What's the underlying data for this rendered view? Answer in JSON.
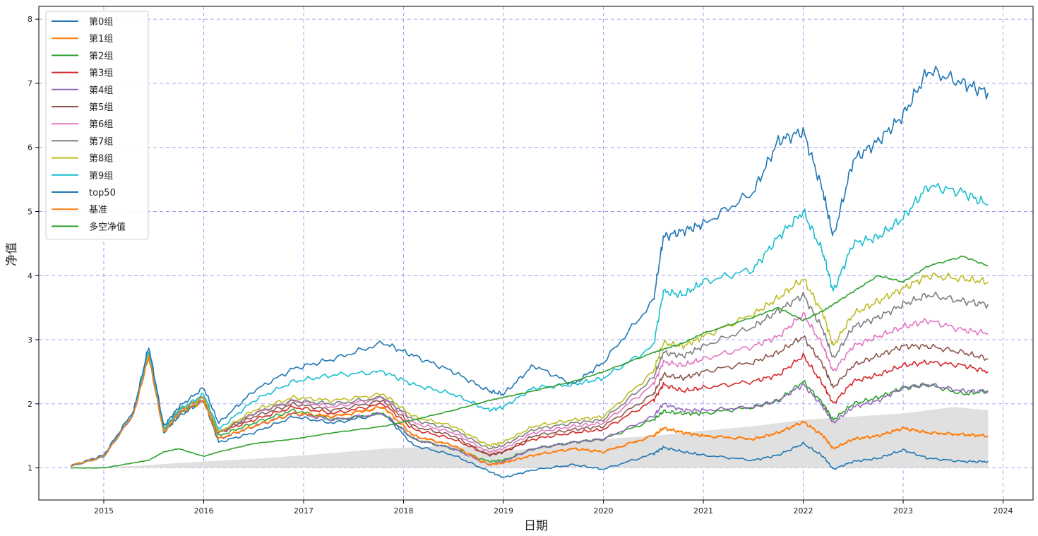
{
  "chart_data": {
    "type": "line",
    "xlabel": "日期",
    "ylabel": "净值",
    "xlim": [
      2014.35,
      2024.3
    ],
    "ylim": [
      0.5,
      8.2
    ],
    "x_ticks": [
      "2015",
      "2016",
      "2017",
      "2018",
      "2019",
      "2020",
      "2021",
      "2022",
      "2023",
      "2024"
    ],
    "y_ticks": [
      "1",
      "2",
      "3",
      "4",
      "5",
      "6",
      "7",
      "8"
    ],
    "grid": true,
    "grid_style": "dashed",
    "legend_position": "upper-left",
    "x": [
      2014.67,
      2015.0,
      2015.3,
      2015.45,
      2015.6,
      2015.75,
      2016.0,
      2016.15,
      2016.5,
      2016.9,
      2017.3,
      2017.8,
      2018.1,
      2018.5,
      2018.85,
      2019.0,
      2019.3,
      2019.7,
      2020.0,
      2020.5,
      2020.6,
      2020.8,
      2021.0,
      2021.5,
      2021.75,
      2022.0,
      2022.2,
      2022.3,
      2022.5,
      2022.75,
      2023.0,
      2023.25,
      2023.6,
      2023.85
    ],
    "series": [
      {
        "name": "第0组",
        "color": "#1f77b4",
        "values": [
          1.03,
          1.18,
          1.85,
          2.8,
          1.55,
          1.8,
          2.05,
          1.4,
          1.55,
          1.8,
          1.7,
          1.85,
          1.35,
          1.2,
          0.95,
          0.85,
          0.97,
          1.05,
          0.98,
          1.22,
          1.32,
          1.25,
          1.2,
          1.12,
          1.2,
          1.38,
          1.18,
          0.98,
          1.1,
          1.15,
          1.28,
          1.15,
          1.1,
          1.1
        ]
      },
      {
        "name": "第1组",
        "color": "#ff7f0e",
        "values": [
          1.03,
          1.18,
          1.85,
          2.75,
          1.55,
          1.85,
          2.05,
          1.45,
          1.65,
          1.85,
          1.8,
          1.95,
          1.5,
          1.35,
          1.05,
          1.08,
          1.2,
          1.3,
          1.25,
          1.5,
          1.62,
          1.55,
          1.5,
          1.45,
          1.55,
          1.72,
          1.5,
          1.3,
          1.45,
          1.5,
          1.62,
          1.55,
          1.52,
          1.5
        ]
      },
      {
        "name": "第2组",
        "color": "#2ca02c",
        "values": [
          1.03,
          1.18,
          1.85,
          2.75,
          1.55,
          1.85,
          2.05,
          1.5,
          1.7,
          1.9,
          1.75,
          1.85,
          1.45,
          1.3,
          1.1,
          1.12,
          1.3,
          1.4,
          1.45,
          1.75,
          1.88,
          1.85,
          1.85,
          1.95,
          2.05,
          2.35,
          2.0,
          1.75,
          2.0,
          2.1,
          2.25,
          2.3,
          2.15,
          2.2
        ]
      },
      {
        "name": "第3组",
        "color": "#d62728",
        "values": [
          1.03,
          1.18,
          1.85,
          2.8,
          1.6,
          1.9,
          2.1,
          1.55,
          1.75,
          1.95,
          1.85,
          2.0,
          1.6,
          1.45,
          1.2,
          1.25,
          1.45,
          1.55,
          1.6,
          2.05,
          2.3,
          2.2,
          2.25,
          2.35,
          2.45,
          2.75,
          2.3,
          2.0,
          2.35,
          2.45,
          2.6,
          2.65,
          2.6,
          2.5
        ]
      },
      {
        "name": "第4组",
        "color": "#9467bd",
        "values": [
          1.03,
          1.18,
          1.85,
          2.75,
          1.55,
          1.85,
          2.05,
          1.45,
          1.65,
          1.85,
          1.75,
          1.85,
          1.45,
          1.3,
          1.05,
          1.1,
          1.3,
          1.4,
          1.45,
          1.8,
          2.0,
          1.9,
          1.9,
          1.95,
          2.05,
          2.3,
          1.95,
          1.7,
          1.95,
          2.05,
          2.25,
          2.3,
          2.2,
          2.2
        ]
      },
      {
        "name": "第5组",
        "color": "#8c564b",
        "values": [
          1.03,
          1.18,
          1.85,
          2.8,
          1.6,
          1.9,
          2.1,
          1.55,
          1.8,
          2.0,
          1.9,
          2.05,
          1.65,
          1.5,
          1.2,
          1.25,
          1.5,
          1.6,
          1.65,
          2.15,
          2.45,
          2.4,
          2.5,
          2.65,
          2.8,
          3.05,
          2.6,
          2.25,
          2.6,
          2.75,
          2.9,
          2.9,
          2.8,
          2.7
        ]
      },
      {
        "name": "第6组",
        "color": "#e377c2",
        "values": [
          1.03,
          1.18,
          1.85,
          2.8,
          1.6,
          1.9,
          2.1,
          1.55,
          1.85,
          2.05,
          1.95,
          2.1,
          1.7,
          1.55,
          1.25,
          1.3,
          1.55,
          1.65,
          1.7,
          2.3,
          2.65,
          2.6,
          2.7,
          2.9,
          3.05,
          3.4,
          2.9,
          2.5,
          2.9,
          3.05,
          3.2,
          3.3,
          3.15,
          3.1
        ]
      },
      {
        "name": "第7组",
        "color": "#7f7f7f",
        "values": [
          1.03,
          1.18,
          1.85,
          2.8,
          1.6,
          1.9,
          2.1,
          1.55,
          1.85,
          2.05,
          2.0,
          2.1,
          1.75,
          1.6,
          1.3,
          1.35,
          1.6,
          1.7,
          1.75,
          2.4,
          2.8,
          2.75,
          2.9,
          3.2,
          3.45,
          3.7,
          3.15,
          2.7,
          3.2,
          3.35,
          3.55,
          3.7,
          3.6,
          3.55
        ]
      },
      {
        "name": "第8组",
        "color": "#bcbd22",
        "values": [
          1.03,
          1.18,
          1.85,
          2.8,
          1.6,
          1.9,
          2.1,
          1.55,
          1.9,
          2.1,
          2.05,
          2.15,
          1.8,
          1.65,
          1.35,
          1.4,
          1.65,
          1.75,
          1.8,
          2.5,
          2.95,
          2.9,
          3.05,
          3.4,
          3.65,
          3.95,
          3.4,
          2.9,
          3.4,
          3.6,
          3.8,
          4.0,
          3.95,
          3.9
        ]
      },
      {
        "name": "第9组",
        "color": "#17becf",
        "values": [
          1.03,
          1.18,
          1.85,
          2.85,
          1.6,
          1.9,
          2.15,
          1.6,
          2.05,
          2.35,
          2.45,
          2.5,
          2.3,
          2.15,
          1.9,
          1.95,
          2.25,
          2.3,
          2.4,
          2.9,
          3.75,
          3.7,
          3.9,
          4.1,
          4.6,
          5.0,
          4.35,
          3.75,
          4.5,
          4.6,
          4.9,
          5.4,
          5.3,
          5.1
        ]
      },
      {
        "name": "top50",
        "color": "#1f77b4",
        "values": [
          1.03,
          1.2,
          1.9,
          2.9,
          1.65,
          1.95,
          2.25,
          1.7,
          2.2,
          2.55,
          2.7,
          2.95,
          2.75,
          2.5,
          2.2,
          2.15,
          2.6,
          2.3,
          2.65,
          3.6,
          4.6,
          4.7,
          4.8,
          5.3,
          6.1,
          6.25,
          5.3,
          4.6,
          5.8,
          6.1,
          6.5,
          7.2,
          7.0,
          6.85
        ]
      },
      {
        "name": "基准",
        "color": "#ff7f0e",
        "values": [
          1.03,
          1.18,
          1.85,
          2.75,
          1.55,
          1.85,
          2.05,
          1.45,
          1.65,
          1.85,
          1.8,
          1.95,
          1.5,
          1.35,
          1.05,
          1.08,
          1.2,
          1.3,
          1.25,
          1.5,
          1.62,
          1.55,
          1.5,
          1.45,
          1.55,
          1.72,
          1.5,
          1.3,
          1.45,
          1.5,
          1.62,
          1.55,
          1.52,
          1.5
        ]
      },
      {
        "name": "多空净值",
        "color": "#2ca02c",
        "values": [
          1.0,
          1.0,
          1.08,
          1.12,
          1.25,
          1.3,
          1.18,
          1.25,
          1.38,
          1.45,
          1.55,
          1.65,
          1.75,
          1.9,
          2.05,
          2.1,
          2.2,
          2.35,
          2.5,
          2.8,
          2.85,
          2.95,
          3.1,
          3.35,
          3.5,
          3.3,
          3.45,
          3.55,
          3.75,
          4.0,
          3.9,
          4.15,
          4.3,
          4.15
        ]
      }
    ],
    "excess_area": {
      "color": "#e0e0e0",
      "x": [
        2014.67,
        2015.3,
        2016.0,
        2016.6,
        2017.2,
        2017.8,
        2018.5,
        2019.0,
        2019.5,
        2020.0,
        2020.5,
        2021.0,
        2021.5,
        2022.0,
        2022.5,
        2023.0,
        2023.5,
        2023.85
      ],
      "values": [
        1.0,
        1.03,
        1.1,
        1.15,
        1.22,
        1.3,
        1.35,
        1.25,
        1.35,
        1.45,
        1.5,
        1.58,
        1.65,
        1.75,
        1.8,
        1.85,
        1.95,
        1.9
      ]
    }
  }
}
